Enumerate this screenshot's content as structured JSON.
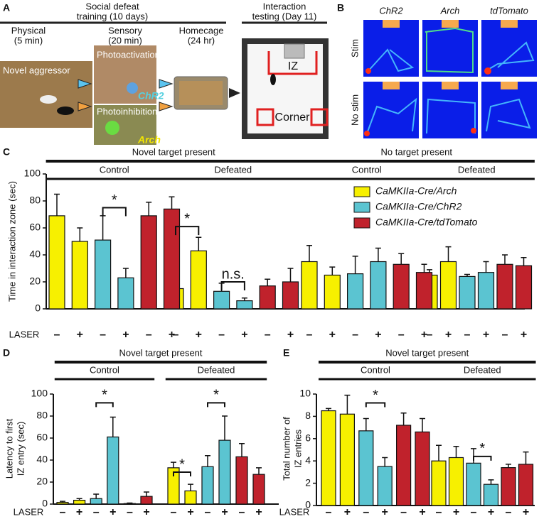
{
  "panel_a": {
    "label": "A",
    "heading": [
      "Social defeat",
      "training (10 days)"
    ],
    "steps": [
      [
        "Physical",
        "(5 min)"
      ],
      [
        "Sensory",
        "(20 min)"
      ],
      [
        "Homecage",
        "(24 hr)"
      ]
    ],
    "testing": [
      "Interaction",
      "testing (Day 11)"
    ],
    "photo_labels": [
      "Novel aggressor",
      "Photoactivation",
      "Photoinhibition"
    ],
    "opsins": [
      "ChR2",
      "Arch"
    ],
    "zones": [
      "IZ",
      "Corner"
    ]
  },
  "panel_b": {
    "label": "B",
    "columns": [
      "ChR2",
      "Arch",
      "tdTomato"
    ],
    "rows": [
      "Stim",
      "No stim"
    ]
  },
  "chart_data": [
    {
      "type": "bar",
      "label": "C",
      "headers": [
        "Novel target present",
        "No target present"
      ],
      "groups": [
        "Control",
        "Defeated",
        "Control",
        "Defeated"
      ],
      "ylabel": [
        "Time in interaction zone (sec)"
      ],
      "laser_label": "LASER",
      "categories": [
        "–",
        "+",
        "–",
        "+",
        "–",
        "+",
        "–",
        "+",
        "–",
        "+",
        "–",
        "+",
        "–",
        "+",
        "–",
        "+",
        "–",
        "+",
        "–",
        "+",
        "–",
        "+",
        "–",
        "+"
      ],
      "ylim": [
        0,
        100
      ],
      "yticks": [
        0,
        20,
        40,
        60,
        80,
        100
      ],
      "series": [
        {
          "name": "CaMKIIa-Cre/Arch",
          "color": "#f7f000",
          "values": [
            69,
            50,
            null,
            null,
            null,
            null,
            15,
            43,
            null,
            null,
            null,
            null,
            35,
            25,
            null,
            null,
            null,
            null,
            25,
            35,
            null,
            null,
            null,
            null
          ],
          "errors": [
            16,
            10,
            null,
            null,
            null,
            null,
            3,
            10,
            null,
            null,
            null,
            null,
            12,
            6,
            null,
            null,
            null,
            null,
            4,
            11,
            null,
            null,
            null,
            null
          ]
        },
        {
          "name": "CaMKIIa-Cre/ChR2",
          "color": "#5bc4d1",
          "values": [
            null,
            null,
            51,
            23,
            null,
            null,
            null,
            null,
            13,
            6,
            null,
            null,
            null,
            null,
            26,
            35,
            null,
            null,
            null,
            null,
            24,
            27,
            null,
            null
          ],
          "errors": [
            null,
            null,
            18,
            7,
            null,
            null,
            null,
            null,
            6,
            2,
            null,
            null,
            null,
            null,
            13,
            10,
            null,
            null,
            null,
            null,
            1.5,
            8,
            null,
            null
          ]
        },
        {
          "name": "CaMKIIa-Cre/tdTomato",
          "color": "#c0222c",
          "values": [
            null,
            null,
            null,
            null,
            69,
            74,
            null,
            null,
            null,
            null,
            17,
            20,
            null,
            null,
            null,
            null,
            33,
            27,
            null,
            null,
            null,
            null,
            33,
            32
          ],
          "errors": [
            null,
            null,
            null,
            null,
            10,
            9,
            null,
            null,
            null,
            null,
            5,
            10,
            null,
            null,
            null,
            null,
            8,
            6,
            null,
            null,
            null,
            null,
            7,
            6
          ]
        }
      ],
      "annotations": [
        "*",
        "*",
        "n.s."
      ]
    },
    {
      "type": "bar",
      "label": "D",
      "headers": [
        "Novel target present"
      ],
      "groups": [
        "Control",
        "Defeated"
      ],
      "ylabel": [
        "Latency to first",
        "IZ entry (sec)"
      ],
      "laser_label": "LASER",
      "categories": [
        "–",
        "+",
        "–",
        "+",
        "–",
        "+",
        "–",
        "+",
        "–",
        "+",
        "–",
        "+"
      ],
      "ylim": [
        0,
        100
      ],
      "yticks": [
        0,
        20,
        40,
        60,
        80,
        100
      ],
      "series": [
        {
          "color": "#f7f000",
          "values": [
            1.5,
            3.5,
            null,
            null,
            null,
            null,
            33,
            12,
            null,
            null,
            null,
            null
          ],
          "errors": [
            1,
            1.5,
            null,
            null,
            null,
            null,
            5,
            6,
            null,
            null,
            null,
            null
          ]
        },
        {
          "color": "#5bc4d1",
          "values": [
            null,
            null,
            5,
            61,
            null,
            null,
            null,
            null,
            34,
            58,
            null,
            null
          ],
          "errors": [
            null,
            null,
            4,
            18,
            null,
            null,
            null,
            null,
            10,
            22,
            null,
            null
          ]
        },
        {
          "color": "#c0222c",
          "values": [
            null,
            null,
            null,
            null,
            0.5,
            7,
            null,
            null,
            null,
            null,
            43,
            27
          ],
          "errors": [
            null,
            null,
            null,
            null,
            0.5,
            4,
            null,
            null,
            null,
            null,
            12,
            6
          ]
        }
      ],
      "annotations": [
        "*",
        "*",
        "*"
      ]
    },
    {
      "type": "bar",
      "label": "E",
      "headers": [
        "Novel target present"
      ],
      "groups": [
        "Control",
        "Defeated"
      ],
      "ylabel": [
        "Total number of",
        "IZ entries"
      ],
      "laser_label": "LASER",
      "categories": [
        "–",
        "+",
        "–",
        "+",
        "–",
        "+",
        "–",
        "+",
        "–",
        "+",
        "–",
        "+"
      ],
      "ylim": [
        0,
        10
      ],
      "yticks": [
        0,
        2,
        4,
        6,
        8,
        10
      ],
      "series": [
        {
          "color": "#f7f000",
          "values": [
            8.5,
            8.2,
            null,
            null,
            null,
            null,
            4,
            4.3,
            null,
            null,
            null,
            null
          ],
          "errors": [
            0.2,
            1.7,
            null,
            null,
            null,
            null,
            1.4,
            1,
            null,
            null,
            null,
            null
          ]
        },
        {
          "color": "#5bc4d1",
          "values": [
            null,
            null,
            6.7,
            3.5,
            null,
            null,
            null,
            null,
            3.8,
            1.9,
            null,
            null
          ],
          "errors": [
            null,
            null,
            1.1,
            0.8,
            null,
            null,
            null,
            null,
            1.3,
            0.4,
            null,
            null
          ]
        },
        {
          "color": "#c0222c",
          "values": [
            null,
            null,
            null,
            null,
            7.2,
            6.6,
            null,
            null,
            null,
            null,
            3.4,
            3.7
          ],
          "errors": [
            null,
            null,
            null,
            null,
            1.1,
            1.2,
            null,
            null,
            null,
            null,
            0.3,
            1.1
          ]
        }
      ],
      "annotations": [
        "*",
        "*"
      ]
    }
  ]
}
